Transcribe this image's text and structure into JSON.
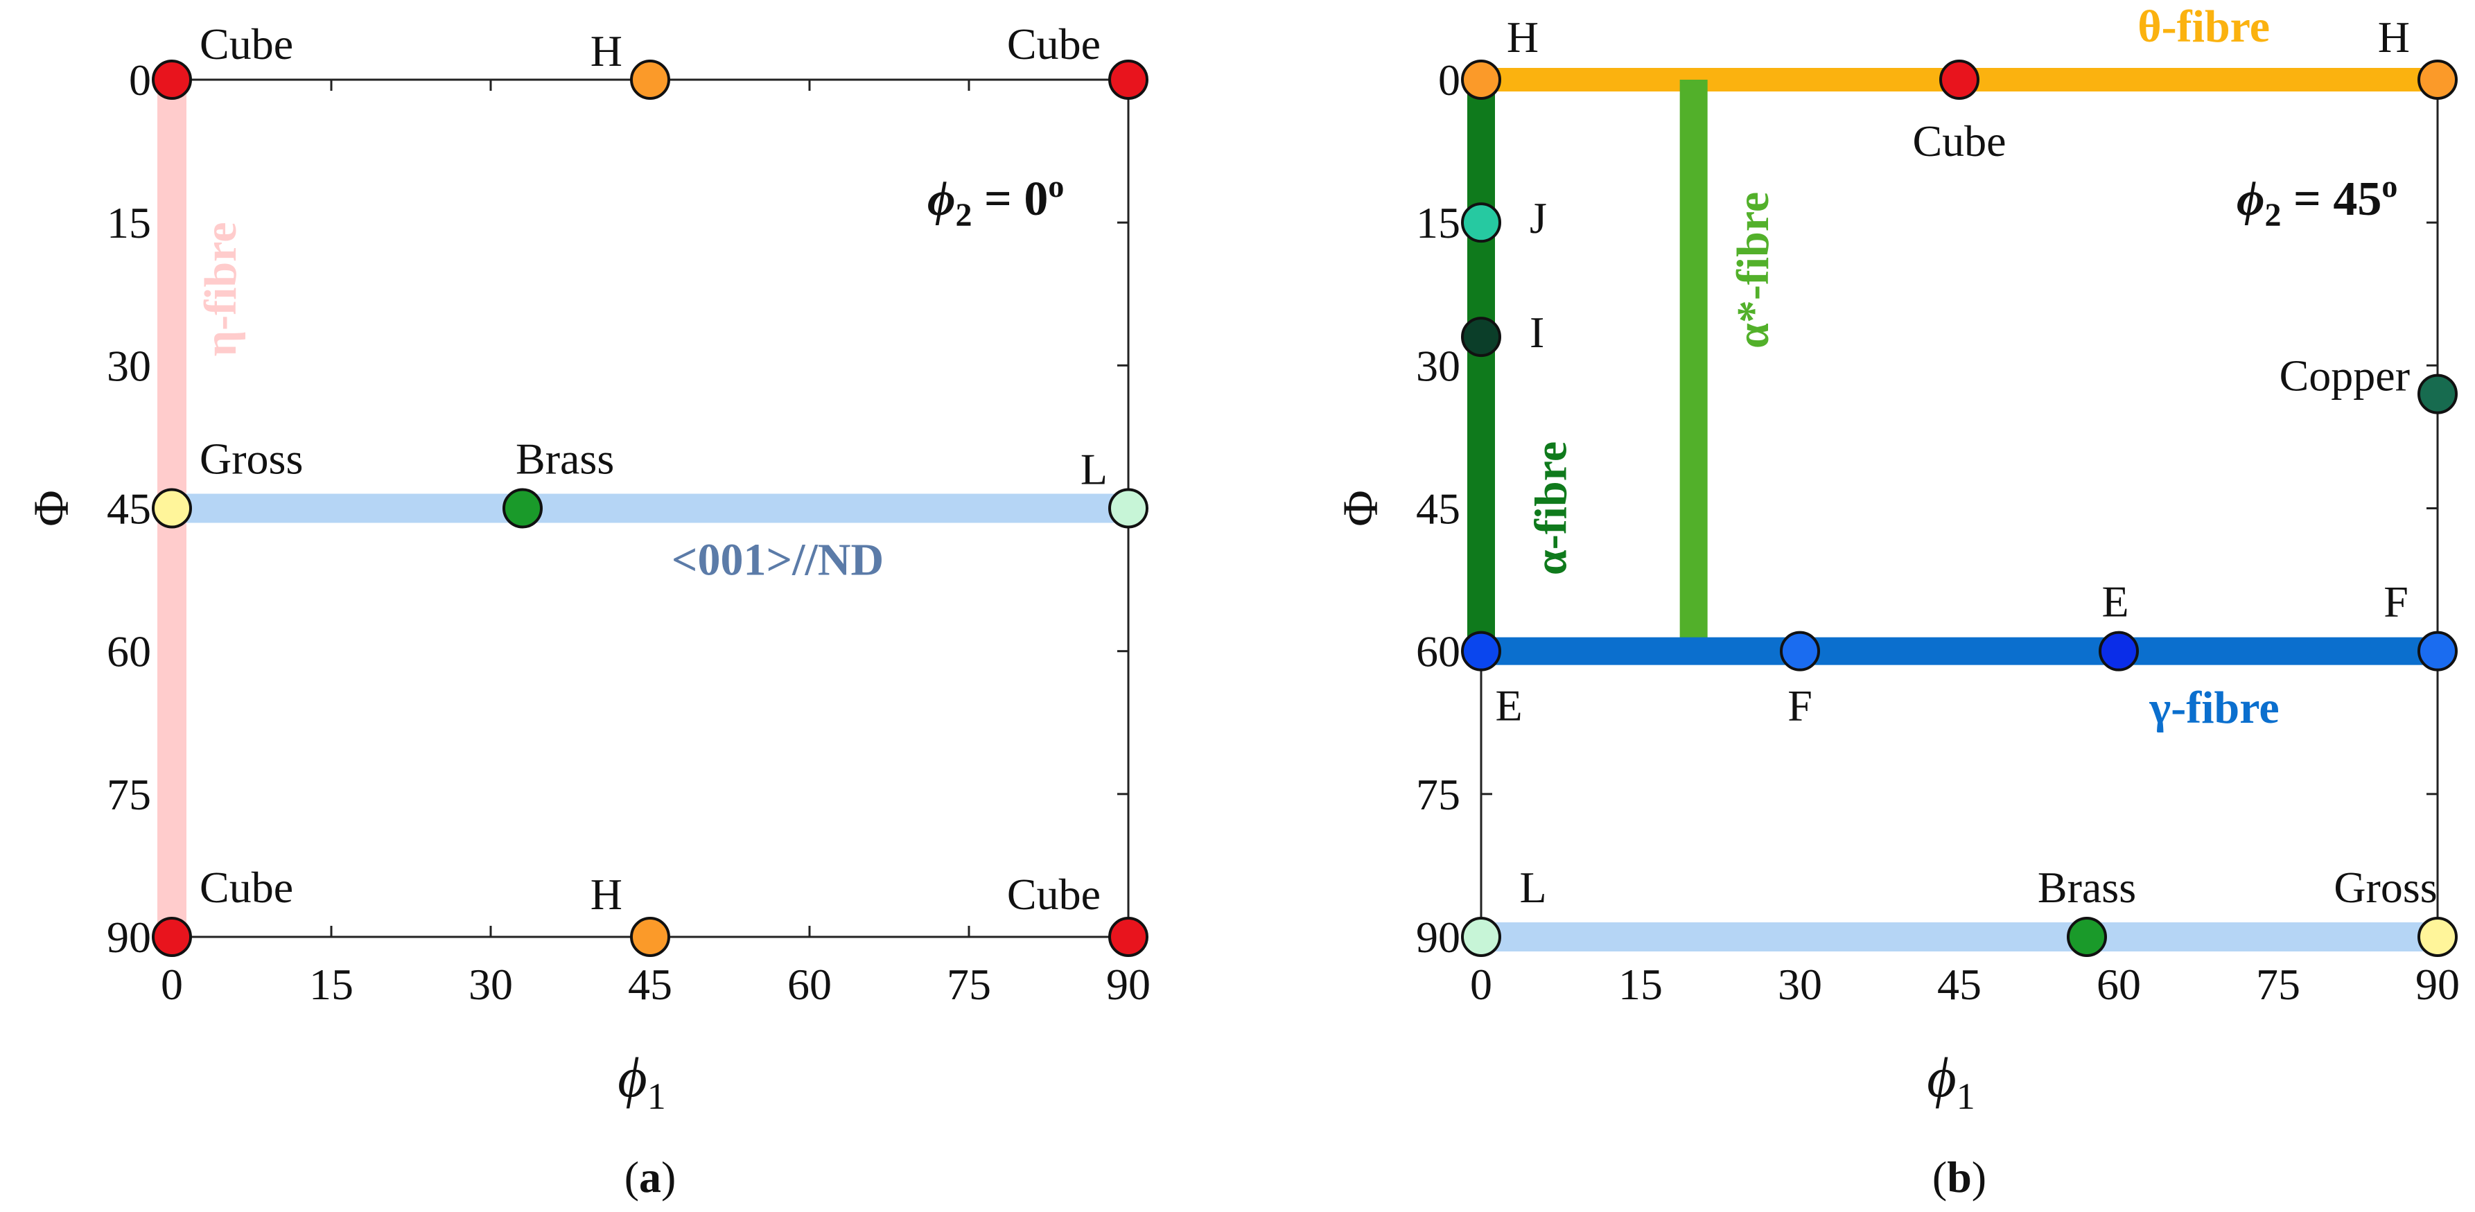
{
  "panels": [
    {
      "id": "a",
      "caption": "(a)",
      "xlabel": "ϕ",
      "xlabel_sub": "1",
      "ylabel": "Φ",
      "xlim": [
        0,
        90
      ],
      "ylim": [
        0,
        90
      ],
      "x_ticks": [
        0,
        15,
        30,
        45,
        60,
        75,
        90
      ],
      "y_ticks": [
        0,
        15,
        30,
        45,
        60,
        75,
        90
      ],
      "phi2_label": {
        "sym": "ϕ",
        "sub": "2",
        "eq": " = 0",
        "deg": "o"
      },
      "fibres": [
        {
          "name": "η-fibre",
          "color": "#ffcccc",
          "from": [
            0,
            0
          ],
          "to": [
            0,
            90
          ],
          "width": 42,
          "label_rot": -90,
          "label_pos": [
            6,
            22
          ]
        },
        {
          "name": "<001>//ND",
          "color": "#b5d5f5",
          "from": [
            0,
            45
          ],
          "to": [
            90,
            45
          ],
          "width": 42,
          "label_color": "#5b7ba8",
          "label_pos": [
            57,
            52
          ]
        }
      ],
      "points": [
        {
          "name": "Cube",
          "x": 0,
          "y": 0,
          "color": "#e8141d",
          "label_dx": 40,
          "label_dy": -30,
          "anchor": "start"
        },
        {
          "name": "H",
          "x": 45,
          "y": 0,
          "color": "#fb9a29",
          "label_dx": -40,
          "label_dy": -20,
          "anchor": "end"
        },
        {
          "name": "Cube",
          "x": 90,
          "y": 0,
          "color": "#e8141d",
          "label_dx": -40,
          "label_dy": -30,
          "anchor": "end"
        },
        {
          "name": "Gross",
          "x": 0,
          "y": 45,
          "color": "#fff59a",
          "label_dx": 40,
          "label_dy": -50,
          "anchor": "start"
        },
        {
          "name": "Brass",
          "x": 33,
          "y": 45,
          "color": "#1a9a2a",
          "label_dx": -10,
          "label_dy": -50,
          "anchor": "start"
        },
        {
          "name": "L",
          "x": 90,
          "y": 45,
          "color": "#c7f5d7",
          "label_dx": -30,
          "label_dy": -35,
          "anchor": "end"
        },
        {
          "name": "Cube",
          "x": 0,
          "y": 90,
          "color": "#e8141d",
          "label_dx": 40,
          "label_dy": -50,
          "anchor": "start"
        },
        {
          "name": "H",
          "x": 45,
          "y": 90,
          "color": "#fb9a29",
          "label_dx": -40,
          "label_dy": -40,
          "anchor": "end"
        },
        {
          "name": "Cube",
          "x": 90,
          "y": 90,
          "color": "#e8141d",
          "label_dx": -40,
          "label_dy": -40,
          "anchor": "end"
        }
      ]
    },
    {
      "id": "b",
      "caption": "(b)",
      "xlabel": "ϕ",
      "xlabel_sub": "1",
      "ylabel": "Φ",
      "xlim": [
        0,
        90
      ],
      "ylim": [
        0,
        90
      ],
      "x_ticks": [
        0,
        15,
        30,
        45,
        60,
        75,
        90
      ],
      "y_ticks": [
        0,
        15,
        30,
        45,
        60,
        75,
        90
      ],
      "phi2_label": {
        "sym": "ϕ",
        "sub": "2",
        "eq": " = 45",
        "deg": "o"
      },
      "fibres": [
        {
          "name": "θ-fibre",
          "color": "#fbb20f",
          "from": [
            0,
            0
          ],
          "to": [
            90,
            0
          ],
          "width": 34,
          "label_color": "#fbb20f",
          "label_pos": [
            68,
            -4
          ]
        },
        {
          "name": "α-fibre",
          "color": "#0f7a1c",
          "from": [
            0,
            0
          ],
          "to": [
            0,
            60
          ],
          "width": 40,
          "label_rot": -90,
          "label_pos": [
            8,
            45
          ]
        },
        {
          "name": "α*-fibre",
          "color": "#52b02a",
          "from": [
            20,
            0
          ],
          "to": [
            20,
            59
          ],
          "width": 40,
          "label_rot": -90,
          "label_pos": [
            27,
            20
          ]
        },
        {
          "name": "γ-fibre",
          "color": "#0b6fce",
          "from": [
            0,
            60
          ],
          "to": [
            90,
            60
          ],
          "width": 40,
          "label_color": "#0b6fce",
          "label_pos": [
            69,
            67.5
          ]
        },
        {
          "name": "",
          "color": "#b5d5f5",
          "from": [
            0,
            90
          ],
          "to": [
            90,
            90
          ],
          "width": 42
        }
      ],
      "points": [
        {
          "name": "H",
          "x": 0,
          "y": 0,
          "color": "#fb9a29",
          "label_dx": 60,
          "label_dy": -40,
          "anchor": "middle"
        },
        {
          "name": "Cube",
          "x": 45,
          "y": 0,
          "color": "#e8141d",
          "label_dx": 0,
          "label_dy": 110,
          "anchor": "middle"
        },
        {
          "name": "H",
          "x": 90,
          "y": 0,
          "color": "#fb9a29",
          "label_dx": -40,
          "label_dy": -40,
          "anchor": "end"
        },
        {
          "name": "J",
          "x": 0,
          "y": 15,
          "color": "#26c9a1",
          "label_dx": 70,
          "label_dy": 15,
          "anchor": "start"
        },
        {
          "name": "I",
          "x": 0,
          "y": 27,
          "color": "#0b3e29",
          "label_dx": 70,
          "label_dy": 15,
          "anchor": "start"
        },
        {
          "name": "Copper",
          "x": 90,
          "y": 33,
          "color": "#176b4f",
          "label_dx": -40,
          "label_dy": -5,
          "anchor": "end"
        },
        {
          "name": "E",
          "x": 0,
          "y": 60,
          "color": "#0a46ee",
          "label_dx": 40,
          "label_dy": 100,
          "anchor": "middle"
        },
        {
          "name": "F",
          "x": 30,
          "y": 60,
          "color": "#1a6cf0",
          "label_dx": 0,
          "label_dy": 100,
          "anchor": "middle"
        },
        {
          "name": "E",
          "x": 60,
          "y": 60,
          "color": "#0a2de8",
          "label_dx": -5,
          "label_dy": -50,
          "anchor": "middle"
        },
        {
          "name": "F",
          "x": 90,
          "y": 60,
          "color": "#1a6cf0",
          "label_dx": -60,
          "label_dy": -50,
          "anchor": "middle"
        },
        {
          "name": "L",
          "x": 0,
          "y": 90,
          "color": "#c7f5d7",
          "label_dx": 75,
          "label_dy": -50,
          "anchor": "middle"
        },
        {
          "name": "Brass",
          "x": 57,
          "y": 90,
          "color": "#1a9a2a",
          "label_dx": 0,
          "label_dy": -50,
          "anchor": "middle"
        },
        {
          "name": "Gross",
          "x": 90,
          "y": 90,
          "color": "#fff59a",
          "label_dx": -75,
          "label_dy": -50,
          "anchor": "middle"
        }
      ]
    }
  ]
}
